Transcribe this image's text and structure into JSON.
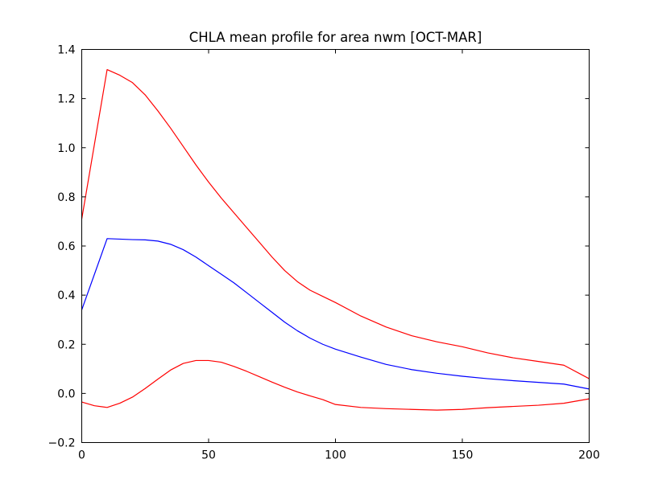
{
  "chart_data": {
    "type": "line",
    "title": "CHLA mean profile for area nwm [OCT-MAR]",
    "xlabel": "",
    "ylabel": "",
    "xlim": [
      0,
      200
    ],
    "ylim": [
      -0.2,
      1.4
    ],
    "x_ticks": [
      "0",
      "50",
      "100",
      "150",
      "200"
    ],
    "y_ticks": [
      "−0.2",
      "0.0",
      "0.2",
      "0.4",
      "0.6",
      "0.8",
      "1.0",
      "1.2",
      "1.4"
    ],
    "grid": false,
    "legend": "none",
    "series": [
      {
        "color": "#0000ff",
        "x": [
          0,
          10,
          15,
          20,
          25,
          30,
          35,
          40,
          45,
          50,
          55,
          60,
          65,
          70,
          75,
          80,
          85,
          90,
          95,
          100,
          110,
          120,
          130,
          140,
          150,
          160,
          170,
          180,
          190,
          200
        ],
        "y": [
          0.34,
          0.63,
          0.628,
          0.626,
          0.625,
          0.62,
          0.607,
          0.585,
          0.555,
          0.52,
          0.485,
          0.45,
          0.41,
          0.37,
          0.33,
          0.29,
          0.255,
          0.225,
          0.2,
          0.18,
          0.148,
          0.118,
          0.097,
          0.082,
          0.07,
          0.06,
          0.052,
          0.045,
          0.038,
          0.018
        ]
      },
      {
        "color": "#ff0000",
        "x": [
          0,
          10,
          15,
          20,
          25,
          30,
          35,
          40,
          45,
          50,
          55,
          60,
          65,
          70,
          75,
          80,
          85,
          90,
          95,
          100,
          110,
          120,
          130,
          140,
          150,
          160,
          170,
          180,
          190,
          200
        ],
        "y": [
          0.71,
          1.318,
          1.295,
          1.265,
          1.215,
          1.15,
          1.08,
          1.005,
          0.93,
          0.86,
          0.795,
          0.735,
          0.675,
          0.615,
          0.555,
          0.5,
          0.455,
          0.42,
          0.395,
          0.37,
          0.315,
          0.27,
          0.235,
          0.21,
          0.19,
          0.165,
          0.145,
          0.13,
          0.115,
          0.06
        ]
      },
      {
        "color": "#ff0000",
        "x": [
          0,
          5,
          10,
          15,
          20,
          25,
          30,
          35,
          40,
          45,
          50,
          55,
          60,
          65,
          70,
          75,
          80,
          85,
          90,
          95,
          100,
          110,
          120,
          130,
          140,
          150,
          160,
          170,
          180,
          190,
          200
        ],
        "y": [
          -0.035,
          -0.05,
          -0.057,
          -0.04,
          -0.015,
          0.02,
          0.058,
          0.095,
          0.122,
          0.134,
          0.134,
          0.127,
          0.11,
          0.09,
          0.068,
          0.046,
          0.025,
          0.006,
          -0.01,
          -0.025,
          -0.045,
          -0.057,
          -0.062,
          -0.065,
          -0.068,
          -0.065,
          -0.058,
          -0.053,
          -0.048,
          -0.04,
          -0.022
        ]
      }
    ]
  }
}
